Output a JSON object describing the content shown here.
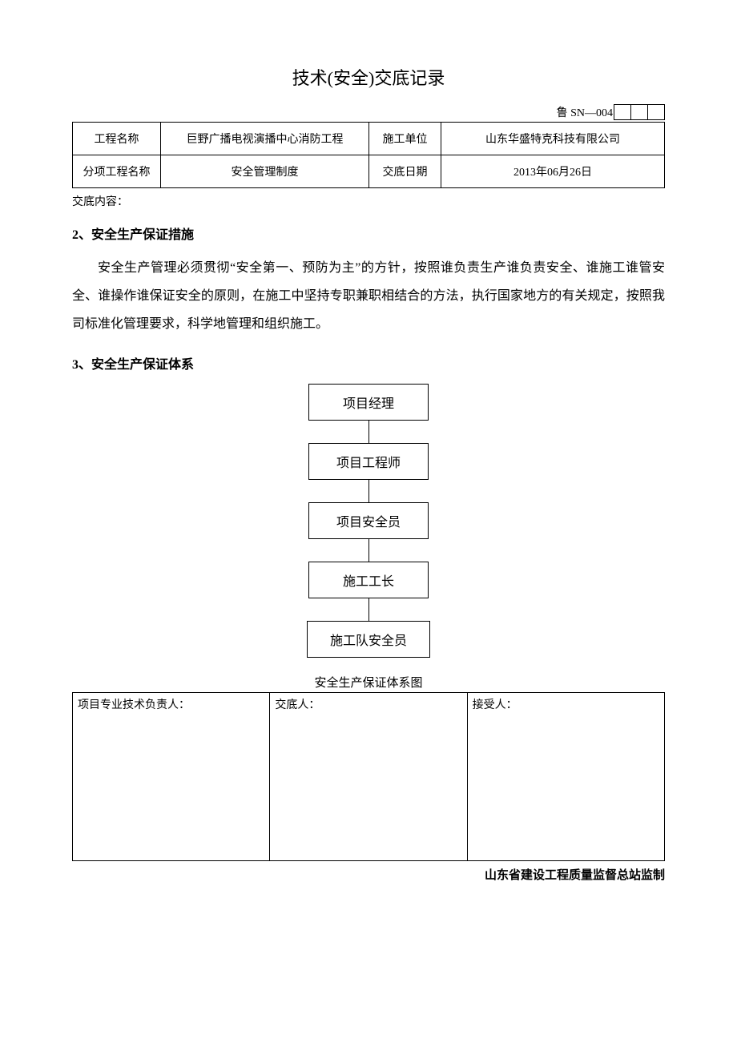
{
  "doc": {
    "title": "技术(安全)交底记录",
    "code_label": "鲁 SN—004",
    "footer": "山东省建设工程质量监督总站监制"
  },
  "header": {
    "project_name_label": "工程名称",
    "project_name_value": "巨野广播电视演播中心消防工程",
    "unit_label": "施工单位",
    "unit_value": "山东华盛特克科技有限公司",
    "sub_project_label": "分项工程名称",
    "sub_project_value": "安全管理制度",
    "date_label": "交底日期",
    "date_value": "2013年06月26日"
  },
  "content": {
    "label": "交底内容：",
    "section2_heading": "2、安全生产保证措施",
    "section2_body": "安全生产管理必须贯彻“安全第一、预防为主”的方针，按照谁负责生产谁负责安全、谁施工谁管安全、谁操作谁保证安全的原则，在施工中坚持专职兼职相结合的方法，执行国家地方的有关规定，按照我司标准化管理要求，科学地管理和组织施工。",
    "section3_heading": "3、安全生产保证体系"
  },
  "flowchart": {
    "nodes": [
      "项目经理",
      "项目工程师",
      "项目安全员",
      "施工工长",
      "施工队安全员"
    ],
    "caption": "安全生产保证体系图",
    "node_border_color": "#000000",
    "connector_color": "#000000",
    "node_fontsize": 16
  },
  "signoff": {
    "tech_lead_label": "项目专业技术负责人：",
    "deliverer_label": "交底人：",
    "receiver_label": "接受人："
  },
  "styles": {
    "page_bg": "#ffffff",
    "text_color": "#000000",
    "border_color": "#000000",
    "title_fontsize": 22,
    "body_fontsize": 16,
    "table_fontsize": 14
  }
}
